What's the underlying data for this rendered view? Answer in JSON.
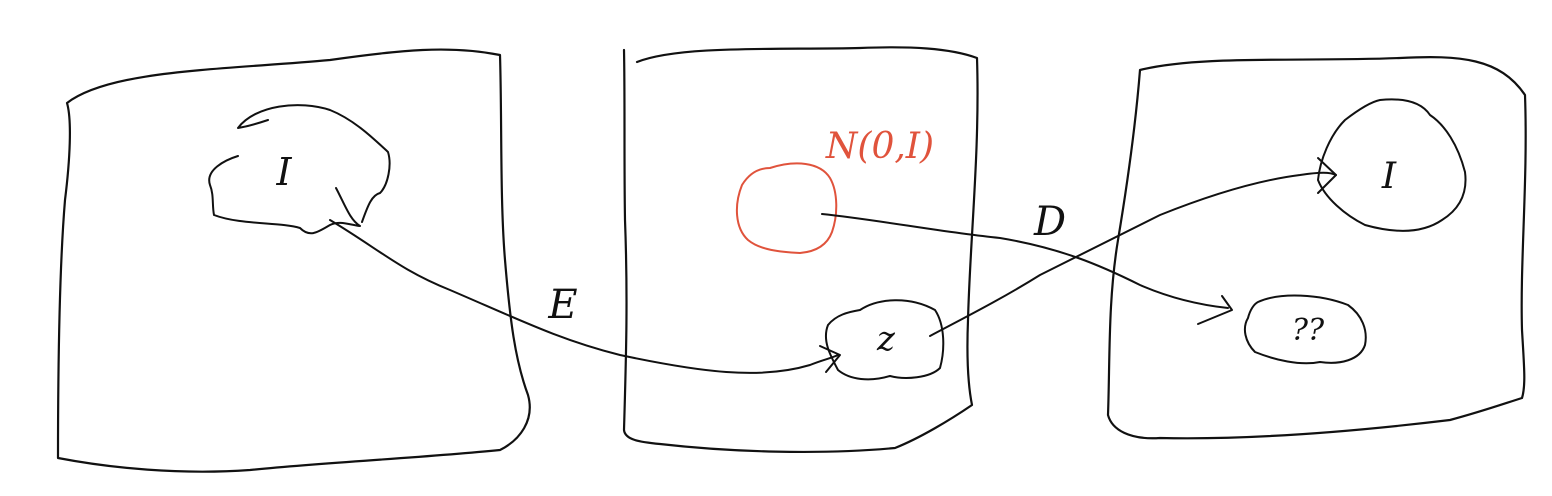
{
  "colors": {
    "ink": "#111111",
    "accent": "#e0533c",
    "background": "#ffffff"
  },
  "panels": [
    {
      "id": "input-space",
      "content_label": "I"
    },
    {
      "id": "latent-space",
      "prior_label": "N(0,I)",
      "content_label": "z"
    },
    {
      "id": "output-space",
      "content_label": "I",
      "unknown_label": "??"
    }
  ],
  "arrows": {
    "encoder_label": "E",
    "decoder_label": "D"
  }
}
